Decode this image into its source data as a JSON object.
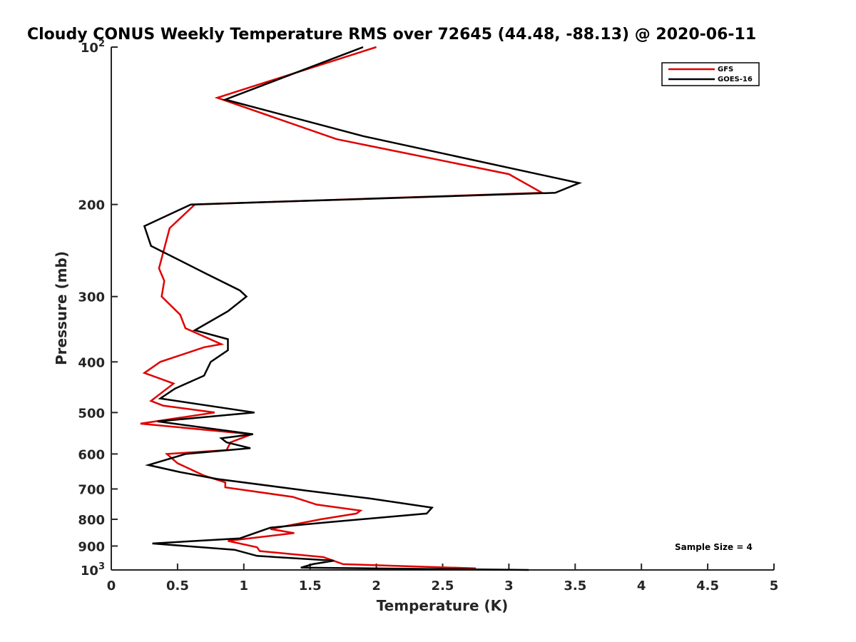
{
  "chart_data": {
    "type": "line",
    "title": "Cloudy CONUS Weekly Temperature RMS over 72645 (44.48, -88.13) @ 2020-06-11",
    "xlabel": "Temperature (K)",
    "ylabel": "Pressure (mb)",
    "xlim": [
      0,
      5
    ],
    "ylim": [
      100,
      1000
    ],
    "y_scale": "log",
    "y_reversed": true,
    "grid": false,
    "legend_position": "top-right",
    "x_ticks": [
      {
        "value": 0,
        "label": "0"
      },
      {
        "value": 0.5,
        "label": "0.5"
      },
      {
        "value": 1,
        "label": "1"
      },
      {
        "value": 1.5,
        "label": "1.5"
      },
      {
        "value": 2,
        "label": "2"
      },
      {
        "value": 2.5,
        "label": "2.5"
      },
      {
        "value": 3,
        "label": "3"
      },
      {
        "value": 3.5,
        "label": "3.5"
      },
      {
        "value": 4,
        "label": "4"
      },
      {
        "value": 4.5,
        "label": "4.5"
      },
      {
        "value": 5,
        "label": "5"
      }
    ],
    "y_ticks": [
      {
        "value": 100,
        "label": "10",
        "sup": "2"
      },
      {
        "value": 200,
        "label": "200",
        "sup": ""
      },
      {
        "value": 300,
        "label": "300",
        "sup": ""
      },
      {
        "value": 400,
        "label": "400",
        "sup": ""
      },
      {
        "value": 500,
        "label": "500",
        "sup": ""
      },
      {
        "value": 600,
        "label": "600",
        "sup": ""
      },
      {
        "value": 700,
        "label": "700",
        "sup": ""
      },
      {
        "value": 800,
        "label": "800",
        "sup": ""
      },
      {
        "value": 900,
        "label": "900",
        "sup": ""
      },
      {
        "value": 1000,
        "label": "10",
        "sup": "3"
      }
    ],
    "annotation": "Sample Size = 4",
    "series": [
      {
        "name": "GFS",
        "color": "#e00000",
        "points": [
          [
            2.0,
            100
          ],
          [
            0.8,
            125
          ],
          [
            1.7,
            150
          ],
          [
            3.0,
            175
          ],
          [
            3.25,
            190
          ],
          [
            0.63,
            200
          ],
          [
            0.44,
            222
          ],
          [
            0.36,
            265
          ],
          [
            0.4,
            280
          ],
          [
            0.38,
            300
          ],
          [
            0.52,
            325
          ],
          [
            0.56,
            345
          ],
          [
            0.83,
            370
          ],
          [
            0.7,
            375
          ],
          [
            0.37,
            400
          ],
          [
            0.25,
            420
          ],
          [
            0.47,
            440
          ],
          [
            0.3,
            475
          ],
          [
            0.39,
            485
          ],
          [
            0.78,
            500
          ],
          [
            0.22,
            525
          ],
          [
            1.06,
            550
          ],
          [
            0.9,
            570
          ],
          [
            0.87,
            590
          ],
          [
            0.42,
            600
          ],
          [
            0.5,
            625
          ],
          [
            0.7,
            660
          ],
          [
            0.86,
            680
          ],
          [
            0.86,
            695
          ],
          [
            1.37,
            725
          ],
          [
            1.55,
            750
          ],
          [
            1.88,
            770
          ],
          [
            1.85,
            780
          ],
          [
            1.58,
            800
          ],
          [
            1.2,
            835
          ],
          [
            1.38,
            850
          ],
          [
            0.88,
            880
          ],
          [
            1.1,
            905
          ],
          [
            1.12,
            920
          ],
          [
            1.6,
            945
          ],
          [
            1.75,
            975
          ],
          [
            2.75,
            993
          ]
        ]
      },
      {
        "name": "GOES-16",
        "color": "#000000",
        "points": [
          [
            1.9,
            100
          ],
          [
            0.86,
            126
          ],
          [
            1.9,
            148
          ],
          [
            3.53,
            182
          ],
          [
            3.35,
            190
          ],
          [
            0.6,
            200
          ],
          [
            0.25,
            220
          ],
          [
            0.3,
            240
          ],
          [
            0.7,
            270
          ],
          [
            0.97,
            292
          ],
          [
            1.02,
            300
          ],
          [
            0.88,
            320
          ],
          [
            0.63,
            348
          ],
          [
            0.88,
            362
          ],
          [
            0.88,
            380
          ],
          [
            0.75,
            400
          ],
          [
            0.7,
            425
          ],
          [
            0.48,
            450
          ],
          [
            0.37,
            470
          ],
          [
            1.08,
            500
          ],
          [
            0.35,
            520
          ],
          [
            1.07,
            550
          ],
          [
            0.83,
            560
          ],
          [
            0.87,
            570
          ],
          [
            1.05,
            585
          ],
          [
            0.56,
            600
          ],
          [
            0.28,
            630
          ],
          [
            0.52,
            650
          ],
          [
            0.8,
            670
          ],
          [
            1.47,
            705
          ],
          [
            1.95,
            730
          ],
          [
            2.42,
            760
          ],
          [
            2.38,
            780
          ],
          [
            1.65,
            810
          ],
          [
            1.2,
            830
          ],
          [
            0.97,
            870
          ],
          [
            0.31,
            890
          ],
          [
            0.93,
            915
          ],
          [
            1.1,
            940
          ],
          [
            1.68,
            960
          ],
          [
            1.52,
            975
          ],
          [
            1.43,
            990
          ],
          [
            3.15,
            1000
          ]
        ]
      }
    ]
  }
}
